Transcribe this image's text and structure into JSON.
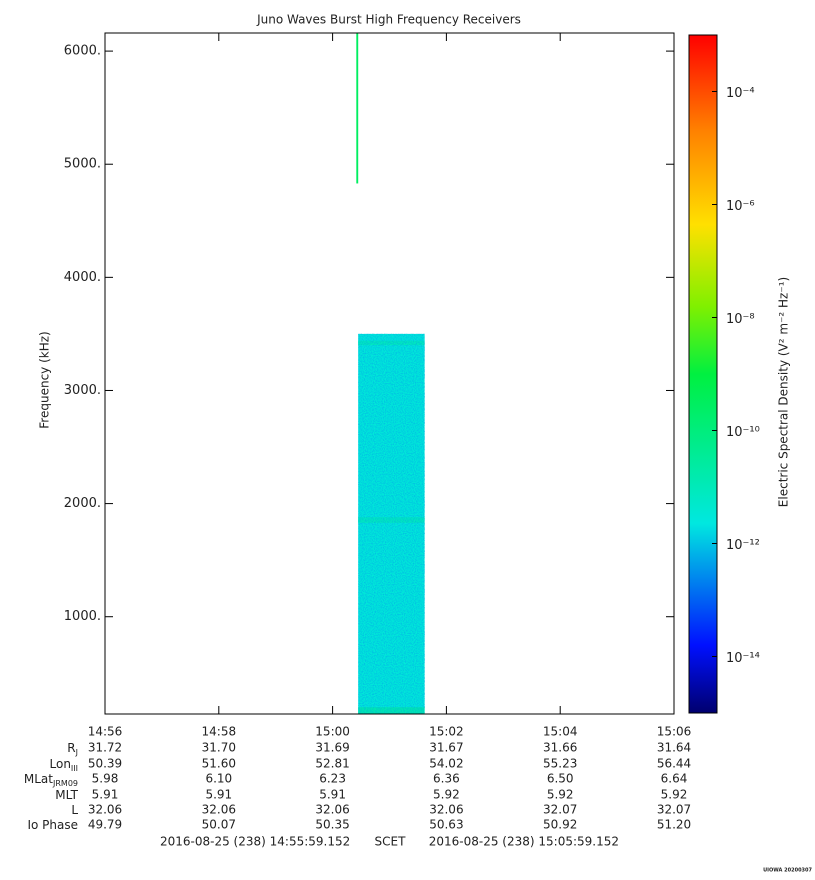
{
  "chart_data": {
    "type": "spectrogram",
    "title": "Juno Waves Burst High Frequency Receivers",
    "ylabel": "Frequency (kHz)",
    "colorbar_label": "Electric Spectral Density (V² m⁻² Hz⁻¹)",
    "xlim": [
      "14:56",
      "15:06"
    ],
    "xticks": [
      "14:56",
      "14:58",
      "15:00",
      "15:02",
      "15:04",
      "15:06"
    ],
    "ylim": [
      140,
      6160
    ],
    "yticks": [
      {
        "value": 1000,
        "label": "1000."
      },
      {
        "value": 2000,
        "label": "2000."
      },
      {
        "value": 3000,
        "label": "3000."
      },
      {
        "value": 4000,
        "label": "4000."
      },
      {
        "value": 5000,
        "label": "5000."
      },
      {
        "value": 6000,
        "label": "6000."
      }
    ],
    "zlim": [
      1e-15,
      0.001
    ],
    "zlog": true,
    "zticks": [
      {
        "value": 1e-14,
        "label": "10⁻¹⁴"
      },
      {
        "value": 1e-12,
        "label": "10⁻¹²"
      },
      {
        "value": 1e-10,
        "label": "10⁻¹⁰"
      },
      {
        "value": 1e-08,
        "label": "10⁻⁸"
      },
      {
        "value": 1e-06,
        "label": "10⁻⁶"
      },
      {
        "value": 0.0001,
        "label": "10⁻⁴"
      }
    ],
    "colormap": [
      [
        0,
        "#00006e"
      ],
      [
        0.1,
        "#0010ff"
      ],
      [
        0.28,
        "#00e8e0"
      ],
      [
        0.5,
        "#00f040"
      ],
      [
        0.6,
        "#80f000"
      ],
      [
        0.72,
        "#ffe000"
      ],
      [
        0.86,
        "#ff8000"
      ],
      [
        1,
        "#ff0000"
      ]
    ],
    "blocks": [
      {
        "start": "15:00:27",
        "end": "15:01:37",
        "fmin": 140,
        "fmax": 3500,
        "value": 3e-12
      },
      {
        "start": "15:00:27",
        "end": "15:01:37",
        "fmin": 1830,
        "fmax": 1880,
        "value": 8e-12
      },
      {
        "start": "15:00:27",
        "end": "15:01:37",
        "fmin": 3400,
        "fmax": 3440,
        "value": 8e-12
      },
      {
        "start": "15:00:27",
        "end": "15:01:37",
        "fmin": 140,
        "fmax": 200,
        "value": 1.5e-11
      },
      {
        "start": "15:00:25",
        "end": "15:00:27",
        "fmin": 4830,
        "fmax": 6160,
        "value": 3e-10
      }
    ]
  },
  "ephemeris": {
    "rows": [
      {
        "name": "R",
        "sub": "J",
        "values": [
          "31.72",
          "31.70",
          "31.69",
          "31.67",
          "31.66",
          "31.64"
        ]
      },
      {
        "name": "Lon",
        "sub": "III",
        "values": [
          "50.39",
          "51.60",
          "52.81",
          "54.02",
          "55.23",
          "56.44"
        ]
      },
      {
        "name": "MLat",
        "sub": "JRM09",
        "values": [
          "5.98",
          "6.10",
          "6.23",
          "6.36",
          "6.50",
          "6.64"
        ]
      },
      {
        "name": "MLT",
        "values": [
          "5.91",
          "5.91",
          "5.91",
          "5.92",
          "5.92",
          "5.92"
        ]
      },
      {
        "name": "L",
        "values": [
          "32.06",
          "32.06",
          "32.06",
          "32.06",
          "32.07",
          "32.07"
        ]
      },
      {
        "name": "Io Phase",
        "values": [
          "49.79",
          "50.07",
          "50.35",
          "50.63",
          "50.92",
          "51.20"
        ]
      }
    ],
    "time_start": "2016-08-25 (238) 14:55:59.152",
    "time_system": "SCET",
    "time_end": "2016-08-25 (238) 15:05:59.152"
  },
  "footer": "UIOWA 20200307"
}
